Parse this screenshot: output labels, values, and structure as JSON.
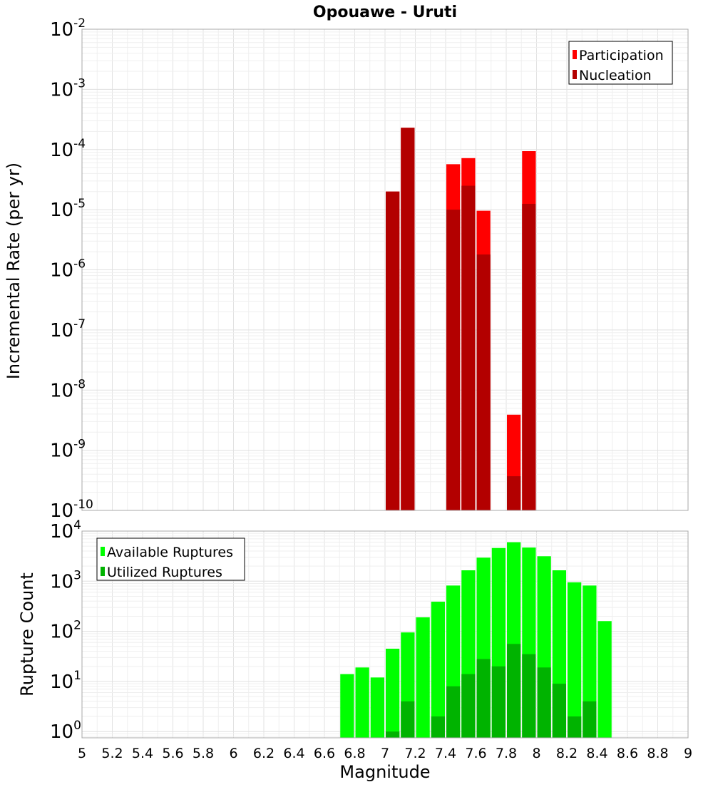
{
  "chart_data": [
    {
      "type": "bar",
      "title": "Opouawe - Uruti",
      "xlabel": "",
      "ylabel": "Incremental Rate (per yr)",
      "yscale": "log",
      "ylim": [
        1e-10,
        0.01
      ],
      "xlim": [
        5,
        9
      ],
      "bin_width": 0.1,
      "legend_position": "top-right",
      "tick_exponents": [
        "-10",
        "-9",
        "-8",
        "-7",
        "-6",
        "-5",
        "-4",
        "-3",
        "-2"
      ],
      "series": [
        {
          "name": "Participation",
          "color": "#ff0000",
          "points": [
            {
              "x": 7.05,
              "y": 2e-05
            },
            {
              "x": 7.15,
              "y": 0.00023
            },
            {
              "x": 7.45,
              "y": 5.7e-05
            },
            {
              "x": 7.55,
              "y": 7.2e-05
            },
            {
              "x": 7.65,
              "y": 9.6e-06
            },
            {
              "x": 7.85,
              "y": 3.9e-09
            },
            {
              "x": 7.95,
              "y": 9.4e-05
            }
          ]
        },
        {
          "name": "Nucleation",
          "color": "#b30000",
          "points": [
            {
              "x": 7.05,
              "y": 2e-05
            },
            {
              "x": 7.15,
              "y": 0.00023
            },
            {
              "x": 7.45,
              "y": 1e-05
            },
            {
              "x": 7.55,
              "y": 2.5e-05
            },
            {
              "x": 7.65,
              "y": 1.8e-06
            },
            {
              "x": 7.85,
              "y": 3.7e-10
            },
            {
              "x": 7.95,
              "y": 1.25e-05
            }
          ]
        }
      ]
    },
    {
      "type": "bar",
      "title": "",
      "xlabel": "Magnitude",
      "ylabel": "Rupture Count",
      "yscale": "log",
      "ylim": [
        0.75,
        10000
      ],
      "xlim": [
        5,
        9
      ],
      "bin_width": 0.1,
      "legend_position": "top-left",
      "tick_exponents": [
        "0",
        "1",
        "2",
        "3",
        "4"
      ],
      "x_ticks": [
        "5",
        "5.2",
        "5.4",
        "5.6",
        "5.8",
        "6",
        "6.2",
        "6.4",
        "6.6",
        "6.8",
        "7",
        "7.2",
        "7.4",
        "7.6",
        "7.8",
        "8",
        "8.2",
        "8.4",
        "8.6",
        "8.8",
        "9"
      ],
      "series": [
        {
          "name": "Available Ruptures",
          "color": "#00ff00",
          "points": [
            {
              "x": 6.75,
              "y": 14
            },
            {
              "x": 6.85,
              "y": 19
            },
            {
              "x": 6.95,
              "y": 12
            },
            {
              "x": 7.05,
              "y": 45
            },
            {
              "x": 7.15,
              "y": 95
            },
            {
              "x": 7.25,
              "y": 190
            },
            {
              "x": 7.35,
              "y": 390
            },
            {
              "x": 7.45,
              "y": 820
            },
            {
              "x": 7.55,
              "y": 1650
            },
            {
              "x": 7.65,
              "y": 2950
            },
            {
              "x": 7.75,
              "y": 4600
            },
            {
              "x": 7.85,
              "y": 6000
            },
            {
              "x": 7.95,
              "y": 4700
            },
            {
              "x": 8.05,
              "y": 3150
            },
            {
              "x": 8.15,
              "y": 1650
            },
            {
              "x": 8.25,
              "y": 950
            },
            {
              "x": 8.35,
              "y": 820
            },
            {
              "x": 8.45,
              "y": 160
            }
          ]
        },
        {
          "name": "Utilized Ruptures",
          "color": "#00b300",
          "points": [
            {
              "x": 7.05,
              "y": 1
            },
            {
              "x": 7.15,
              "y": 4
            },
            {
              "x": 7.35,
              "y": 2
            },
            {
              "x": 7.45,
              "y": 8
            },
            {
              "x": 7.55,
              "y": 14
            },
            {
              "x": 7.65,
              "y": 28
            },
            {
              "x": 7.75,
              "y": 20
            },
            {
              "x": 7.85,
              "y": 56
            },
            {
              "x": 7.95,
              "y": 35
            },
            {
              "x": 8.05,
              "y": 19
            },
            {
              "x": 8.15,
              "y": 9
            },
            {
              "x": 8.25,
              "y": 2
            },
            {
              "x": 8.35,
              "y": 4
            }
          ]
        }
      ]
    }
  ]
}
